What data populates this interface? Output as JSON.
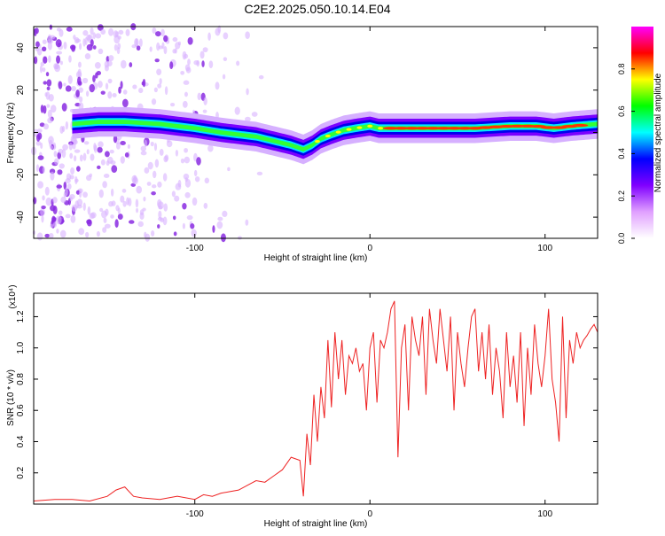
{
  "title": "C2E2.2025.050.10.14.E04",
  "chart_data": [
    {
      "type": "heatmap",
      "xlabel": "Height of straight line (km)",
      "ylabel": "Frequency (Hz)",
      "xlim": [
        -192,
        130
      ],
      "ylim": [
        -50,
        50
      ],
      "xticks": [
        -100,
        0,
        100
      ],
      "yticks": [
        -40,
        -20,
        0,
        20,
        40
      ],
      "grid": false,
      "colorbar": {
        "label": "Normalized spectral amplitude",
        "range": [
          0,
          1
        ],
        "ticks": [
          "0.0",
          "0.2",
          "0.4",
          "0.6",
          "0.8"
        ],
        "tick_values": [
          0,
          0.2,
          0.4,
          0.6,
          0.8
        ],
        "colors": [
          "#ffffff",
          "#e0a0ff",
          "#8000ff",
          "#0000ff",
          "#00ffff",
          "#00ff00",
          "#ffff00",
          "#ff0000",
          "#ff00ff"
        ]
      },
      "ridge": {
        "x": [
          -170,
          -155,
          -140,
          -120,
          -100,
          -85,
          -75,
          -65,
          -55,
          -45,
          -38,
          -33,
          -28,
          -22,
          -15,
          -8,
          0,
          5,
          10,
          20,
          40,
          60,
          80,
          95,
          105,
          115,
          130
        ],
        "y": [
          4,
          5,
          5,
          4,
          2,
          0,
          -1,
          -2,
          -4,
          -6,
          -8,
          -6,
          -3,
          -1,
          1,
          2,
          3,
          2,
          2,
          2,
          2,
          2,
          3,
          3,
          2,
          3,
          4
        ]
      },
      "noise_region_x": [
        -192,
        -60
      ]
    },
    {
      "type": "line",
      "xlabel": "Height of straight line (km)",
      "ylabel": "SNR (10 * v/v)",
      "y_multiplier": "(x10⁴)",
      "xlim": [
        -192,
        130
      ],
      "ylim": [
        0,
        1.35
      ],
      "xticks": [
        -100,
        0,
        100
      ],
      "yticks": [
        0.2,
        0.4,
        0.6,
        0.8,
        1.0,
        1.2
      ],
      "ytick_labels": [
        "0.2",
        "0.4",
        "0.6",
        "0.8",
        "1.0",
        "1.2"
      ],
      "grid": false,
      "color": "#ee2222",
      "series": [
        {
          "x": [
            -192,
            -180,
            -170,
            -160,
            -150,
            -145,
            -140,
            -135,
            -130,
            -120,
            -110,
            -100,
            -95,
            -90,
            -85,
            -80,
            -75,
            -70,
            -65,
            -60,
            -55,
            -50,
            -45,
            -40,
            -38,
            -36,
            -34,
            -32,
            -30,
            -28,
            -26,
            -24,
            -22,
            -20,
            -18,
            -16,
            -14,
            -12,
            -10,
            -8,
            -6,
            -4,
            -2,
            0,
            2,
            4,
            6,
            8,
            10,
            12,
            14,
            16,
            18,
            20,
            22,
            24,
            26,
            28,
            30,
            32,
            34,
            36,
            38,
            40,
            42,
            44,
            46,
            48,
            50,
            52,
            54,
            56,
            58,
            60,
            62,
            64,
            66,
            68,
            70,
            72,
            74,
            76,
            78,
            80,
            82,
            84,
            86,
            88,
            90,
            92,
            94,
            96,
            98,
            100,
            102,
            104,
            106,
            108,
            110,
            112,
            114,
            116,
            118,
            120,
            122,
            124,
            126,
            128,
            130
          ],
          "y": [
            0.02,
            0.03,
            0.03,
            0.02,
            0.05,
            0.09,
            0.11,
            0.05,
            0.04,
            0.03,
            0.05,
            0.03,
            0.06,
            0.05,
            0.07,
            0.08,
            0.09,
            0.12,
            0.15,
            0.14,
            0.18,
            0.22,
            0.3,
            0.28,
            0.05,
            0.45,
            0.25,
            0.7,
            0.4,
            0.75,
            0.55,
            1.05,
            0.62,
            1.1,
            0.8,
            1.05,
            0.7,
            0.95,
            0.9,
            1.0,
            0.85,
            0.9,
            0.6,
            1.0,
            1.1,
            0.65,
            1.05,
            1.0,
            1.1,
            1.25,
            1.3,
            0.3,
            1.0,
            1.15,
            0.6,
            1.2,
            1.05,
            0.95,
            1.2,
            0.7,
            1.25,
            1.05,
            0.9,
            1.25,
            1.05,
            0.85,
            1.2,
            0.6,
            1.1,
            0.9,
            0.75,
            1.0,
            1.2,
            1.25,
            0.85,
            1.1,
            0.8,
            1.15,
            0.7,
            1.0,
            0.85,
            0.55,
            1.1,
            0.75,
            0.95,
            0.65,
            1.1,
            0.5,
            1.0,
            0.7,
            1.15,
            0.9,
            0.75,
            0.95,
            1.25,
            0.8,
            0.65,
            0.4,
            1.2,
            0.55,
            1.05,
            0.9,
            1.1,
            1.0,
            1.05,
            1.08,
            1.12,
            1.15,
            1.1
          ]
        }
      ]
    }
  ]
}
